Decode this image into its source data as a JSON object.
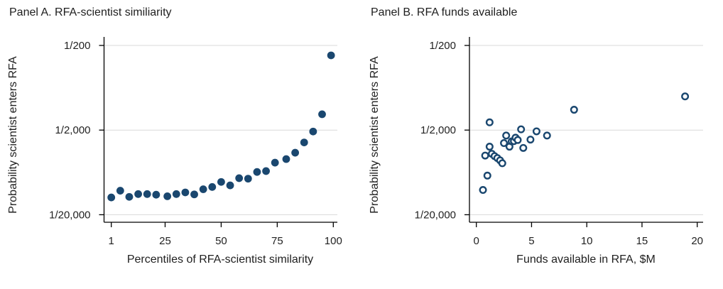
{
  "figure": {
    "background": "#ffffff",
    "marker_color": "#1a476f",
    "grid_color": "#d9d9d9",
    "axis_color": "#000000",
    "text_color": "#222222"
  },
  "chart_data": [
    {
      "id": "panel-a",
      "type": "scatter",
      "title": "Panel A. RFA-scientist similiarity",
      "xlabel": "Percentiles of RFA-scientist similarity",
      "ylabel": "Probability scientist enters RFA",
      "marker": "filled-circle",
      "grid": true,
      "y_scale": "log",
      "y_unit": "probability equals 1 divided by denom",
      "x_range": [
        1,
        100
      ],
      "x_ticks": [
        {
          "value": 1,
          "label": "1"
        },
        {
          "value": 25,
          "label": "25"
        },
        {
          "value": 50,
          "label": "50"
        },
        {
          "value": 75,
          "label": "75"
        },
        {
          "value": 100,
          "label": "100"
        }
      ],
      "y_ticks": [
        {
          "denom": 200,
          "label": "1/200"
        },
        {
          "denom": 2000,
          "label": "1/2,000"
        },
        {
          "denom": 20000,
          "label": "1/20,000"
        }
      ],
      "points": [
        {
          "x": 1,
          "denom": 12500
        },
        {
          "x": 5,
          "denom": 10400
        },
        {
          "x": 9,
          "denom": 12300
        },
        {
          "x": 13,
          "denom": 11400
        },
        {
          "x": 17,
          "denom": 11400
        },
        {
          "x": 21,
          "denom": 11600
        },
        {
          "x": 26,
          "denom": 12100
        },
        {
          "x": 30,
          "denom": 11400
        },
        {
          "x": 34,
          "denom": 10900
        },
        {
          "x": 38,
          "denom": 11500
        },
        {
          "x": 42,
          "denom": 10000
        },
        {
          "x": 46,
          "denom": 9400
        },
        {
          "x": 50,
          "denom": 8200
        },
        {
          "x": 54,
          "denom": 9000
        },
        {
          "x": 58,
          "denom": 7400
        },
        {
          "x": 62,
          "denom": 7500
        },
        {
          "x": 66,
          "denom": 6250
        },
        {
          "x": 70,
          "denom": 6100
        },
        {
          "x": 74,
          "denom": 4850
        },
        {
          "x": 79,
          "denom": 4400
        },
        {
          "x": 83,
          "denom": 3700
        },
        {
          "x": 87,
          "denom": 2800
        },
        {
          "x": 91,
          "denom": 2080
        },
        {
          "x": 95,
          "denom": 1300
        },
        {
          "x": 99,
          "denom": 262
        }
      ]
    },
    {
      "id": "panel-b",
      "type": "scatter",
      "title": "Panel B. RFA funds available",
      "xlabel": "Funds available in RFA, $M",
      "ylabel": "Probability scientist enters RFA",
      "marker": "open-circle",
      "grid": true,
      "y_scale": "log",
      "y_unit": "probability equals 1 divided by denom",
      "x_range": [
        0,
        20
      ],
      "x_ticks": [
        {
          "value": 0,
          "label": "0"
        },
        {
          "value": 5,
          "label": "5"
        },
        {
          "value": 10,
          "label": "10"
        },
        {
          "value": 15,
          "label": "15"
        },
        {
          "value": 20,
          "label": "20"
        }
      ],
      "y_ticks": [
        {
          "denom": 200,
          "label": "1/200"
        },
        {
          "denom": 2000,
          "label": "1/2,000"
        },
        {
          "denom": 20000,
          "label": "1/20,000"
        }
      ],
      "points": [
        {
          "x": 0.6,
          "denom": 10200
        },
        {
          "x": 0.8,
          "denom": 4000
        },
        {
          "x": 1.0,
          "denom": 6900
        },
        {
          "x": 1.2,
          "denom": 1620
        },
        {
          "x": 1.2,
          "denom": 3140
        },
        {
          "x": 1.4,
          "denom": 3810
        },
        {
          "x": 1.65,
          "denom": 4060
        },
        {
          "x": 1.9,
          "denom": 4280
        },
        {
          "x": 2.15,
          "denom": 4560
        },
        {
          "x": 2.35,
          "denom": 4930
        },
        {
          "x": 2.5,
          "denom": 2850
        },
        {
          "x": 2.7,
          "denom": 2320
        },
        {
          "x": 3.0,
          "denom": 3140
        },
        {
          "x": 3.2,
          "denom": 2720
        },
        {
          "x": 3.4,
          "denom": 2700
        },
        {
          "x": 3.55,
          "denom": 2460
        },
        {
          "x": 3.75,
          "denom": 2620
        },
        {
          "x": 4.05,
          "denom": 1960
        },
        {
          "x": 4.25,
          "denom": 3250
        },
        {
          "x": 4.9,
          "denom": 2590
        },
        {
          "x": 5.45,
          "denom": 2070
        },
        {
          "x": 6.4,
          "denom": 2320
        },
        {
          "x": 8.85,
          "denom": 1150
        },
        {
          "x": 18.9,
          "denom": 800
        }
      ]
    }
  ]
}
